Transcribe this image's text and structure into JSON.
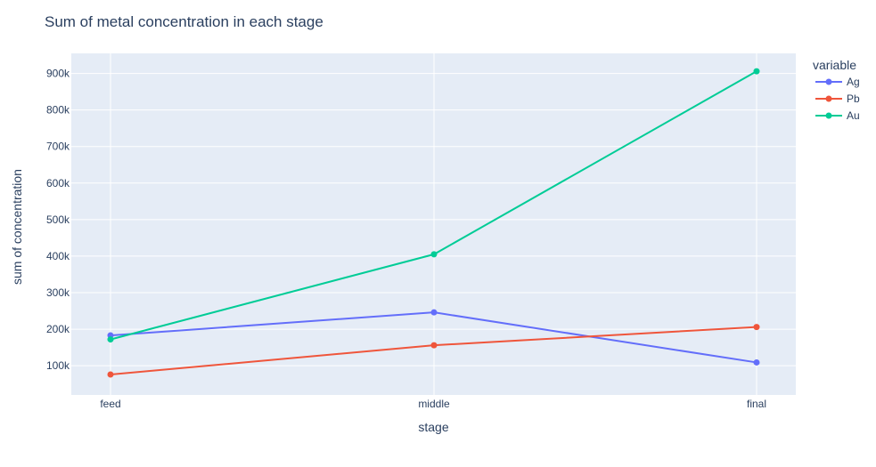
{
  "chart_data": {
    "type": "line",
    "title": "Sum of metal concentration in each stage",
    "xlabel": "stage",
    "ylabel": "sum of concentration",
    "categories": [
      "feed",
      "middle",
      "final"
    ],
    "ylim": [
      20000,
      955000
    ],
    "yticks": [
      100000,
      200000,
      300000,
      400000,
      500000,
      600000,
      700000,
      800000,
      900000
    ],
    "ytick_labels": [
      "100k",
      "200k",
      "300k",
      "400k",
      "500k",
      "600k",
      "700k",
      "800k",
      "900k"
    ],
    "grid": true,
    "legend": {
      "title": "variable",
      "placement": "right"
    },
    "series": [
      {
        "name": "Ag",
        "color": "#636efa",
        "values": [
          183000,
          246000,
          109000
        ]
      },
      {
        "name": "Pb",
        "color": "#ef553b",
        "values": [
          76000,
          156000,
          206000
        ]
      },
      {
        "name": "Au",
        "color": "#00cc96",
        "values": [
          172000,
          405000,
          906000
        ]
      }
    ]
  }
}
